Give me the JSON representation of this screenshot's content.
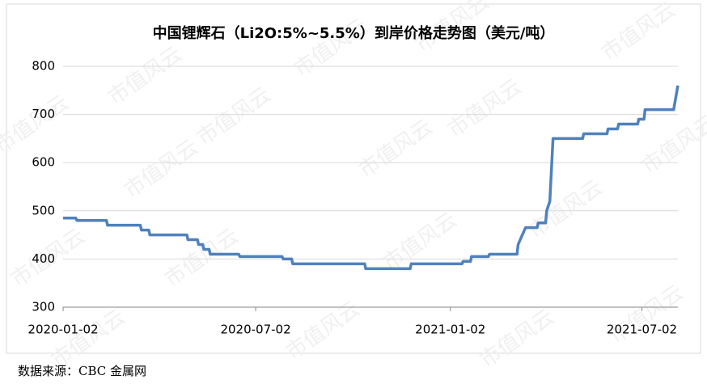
{
  "chart_data": {
    "type": "line",
    "title": "中国锂辉石（Li2O:5%~5.5%）到岸价格走势图（美元/吨）",
    "source": "数据来源：CBC 金属网",
    "watermark": "市值风云",
    "x": [
      "2020-01-02",
      "2020-01-14",
      "2020-01-15",
      "2020-02-12",
      "2020-02-13",
      "2020-03-15",
      "2020-03-16",
      "2020-03-23",
      "2020-03-24",
      "2020-04-28",
      "2020-04-29",
      "2020-05-08",
      "2020-05-09",
      "2020-05-13",
      "2020-05-14",
      "2020-05-19",
      "2020-05-20",
      "2020-06-16",
      "2020-06-17",
      "2020-07-27",
      "2020-07-28",
      "2020-08-05",
      "2020-08-06",
      "2020-10-13",
      "2020-10-14",
      "2020-11-25",
      "2020-11-26",
      "2021-01-13",
      "2021-01-14",
      "2021-01-21",
      "2021-01-22",
      "2021-02-07",
      "2021-02-08",
      "2021-03-06",
      "2021-03-07",
      "2021-03-11",
      "2021-03-14",
      "2021-03-25",
      "2021-03-26",
      "2021-04-02",
      "2021-04-03",
      "2021-04-06",
      "2021-04-09",
      "2021-05-07",
      "2021-05-08",
      "2021-05-30",
      "2021-05-31",
      "2021-06-09",
      "2021-06-10",
      "2021-06-28",
      "2021-06-29",
      "2021-07-04",
      "2021-07-05",
      "2021-08-01",
      "2021-08-05"
    ],
    "series": [
      {
        "color": "#4f81bd",
        "values": [
          485,
          485,
          480,
          480,
          470,
          470,
          460,
          460,
          450,
          450,
          440,
          440,
          430,
          430,
          420,
          420,
          410,
          410,
          405,
          405,
          400,
          400,
          390,
          390,
          380,
          380,
          390,
          390,
          395,
          395,
          405,
          405,
          410,
          410,
          430,
          450,
          465,
          465,
          475,
          475,
          500,
          520,
          650,
          650,
          660,
          660,
          670,
          670,
          680,
          680,
          690,
          690,
          710,
          710,
          760
        ]
      }
    ],
    "xlim": [
      "2020-01-02",
      "2021-08-05"
    ],
    "xticks": [
      "2020-01-02",
      "2020-07-02",
      "2021-01-02",
      "2021-07-02"
    ],
    "ylim": [
      300,
      800
    ],
    "yticks": [
      300,
      400,
      500,
      600,
      700,
      800
    ],
    "grid": true
  }
}
